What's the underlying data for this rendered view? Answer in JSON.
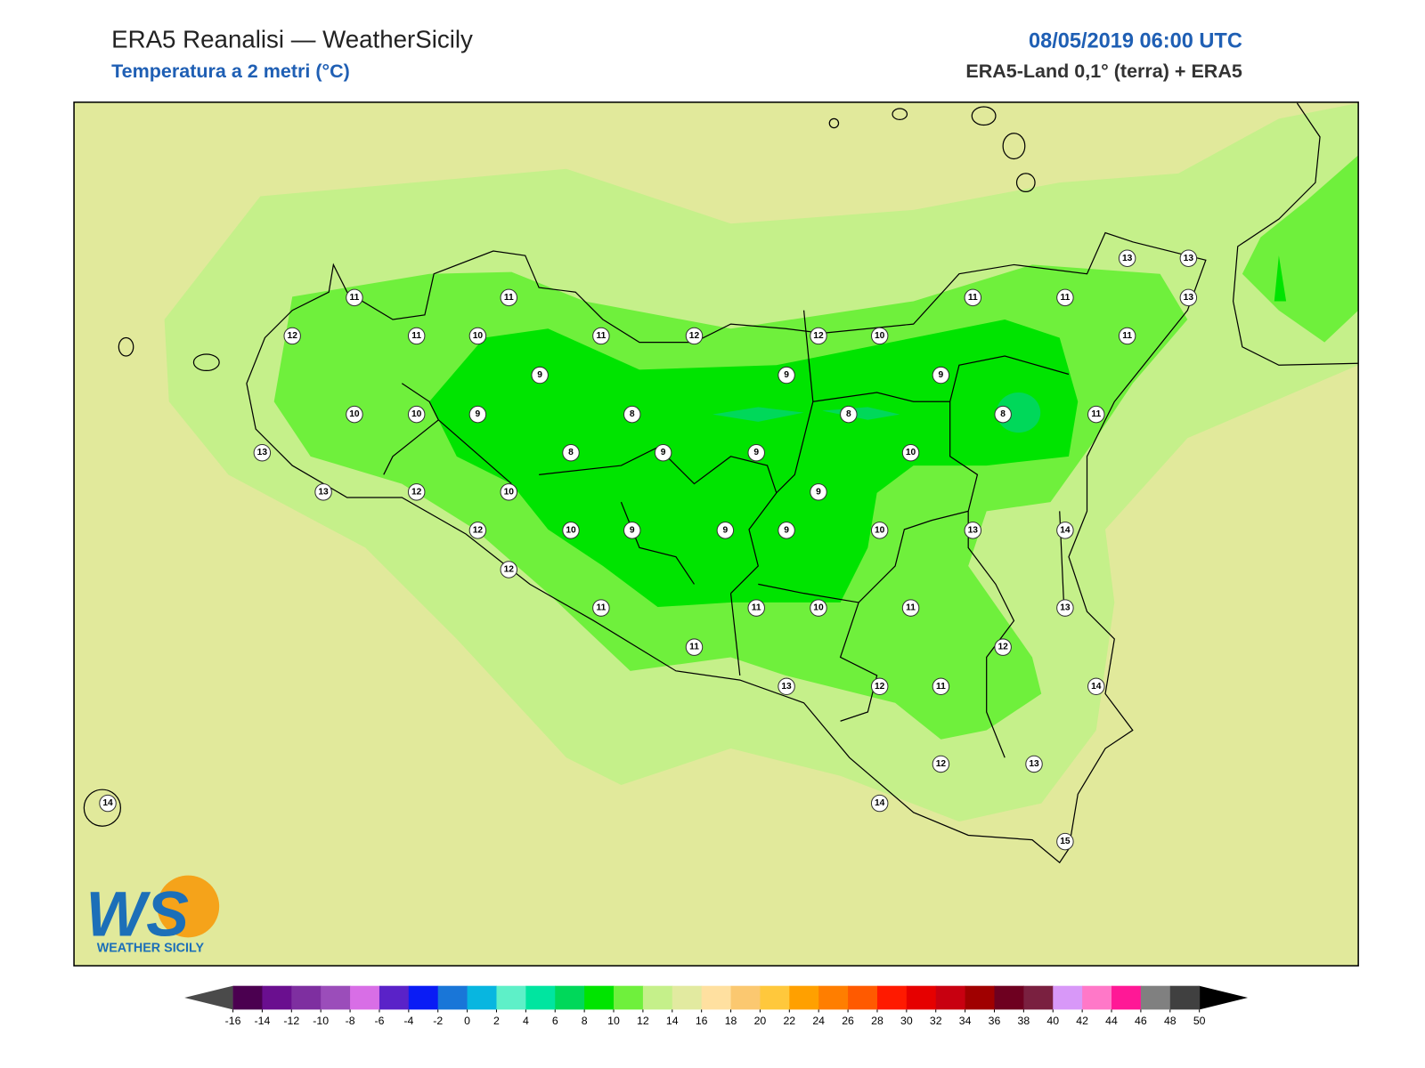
{
  "header": {
    "title": "ERA5 Reanalisi — WeatherSicily",
    "subtitle": "Temperatura a 2 metri (°C)",
    "datetime": "08/05/2019 06:00 UTC",
    "source": "ERA5-Land 0,1° (terra) + ERA5"
  },
  "map": {
    "station_values": [
      11,
      11,
      12,
      11,
      10,
      11,
      12,
      12,
      10,
      11,
      11,
      13,
      13,
      13,
      11,
      9,
      9,
      9,
      10,
      10,
      9,
      8,
      8,
      8,
      11,
      13,
      8,
      9,
      9,
      10,
      13,
      12,
      10,
      9,
      12,
      10,
      9,
      9,
      9,
      10,
      13,
      14,
      12,
      11,
      11,
      10,
      11,
      13,
      11,
      12,
      13,
      12,
      11,
      14,
      12,
      13,
      14,
      14,
      15
    ]
  },
  "logo": {
    "mark": "WS",
    "text": "WEATHER SICILY"
  },
  "colorbar": {
    "ticks": [
      -16,
      -14,
      -12,
      -10,
      -8,
      -6,
      -4,
      -2,
      0,
      2,
      4,
      6,
      8,
      10,
      12,
      14,
      16,
      18,
      20,
      22,
      24,
      26,
      28,
      30,
      32,
      34,
      36,
      38,
      40,
      42,
      44,
      46,
      48,
      50
    ],
    "colors": [
      "#4b0050",
      "#6a0f8f",
      "#7e2fa0",
      "#9b4dba",
      "#d86ee6",
      "#5a22c8",
      "#0a1cf5",
      "#1976d8",
      "#08b6e0",
      "#5ef0c8",
      "#00e5a0",
      "#00d85a",
      "#00e400",
      "#6ff03c",
      "#c5f08a",
      "#e2eaa0",
      "#ffe0a0",
      "#fbc870",
      "#ffc83c",
      "#ffa000",
      "#ff7e00",
      "#ff5a00",
      "#ff1a00",
      "#e60000",
      "#c80010",
      "#a00000",
      "#6e0020",
      "#7a2040",
      "#d898f8",
      "#ff78c8",
      "#ff1896",
      "#808080",
      "#404040"
    ],
    "under_color": "#4a4a4a",
    "over_color": "#000000"
  }
}
